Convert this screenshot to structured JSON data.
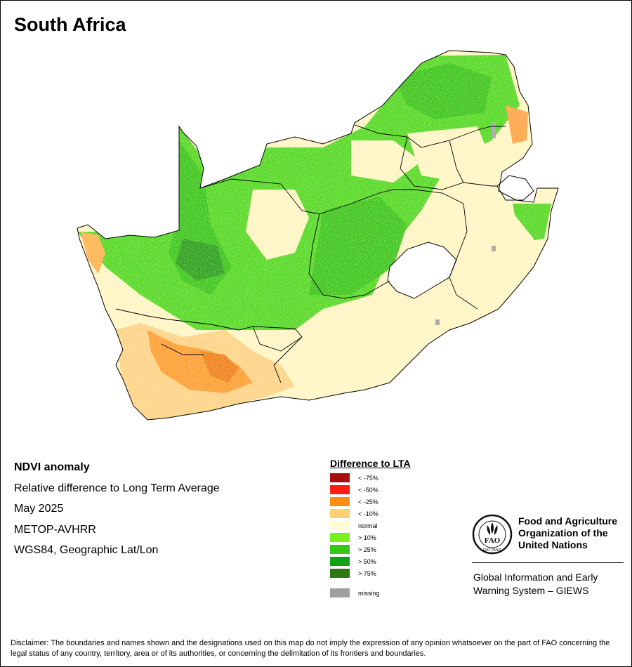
{
  "title": "South Africa",
  "meta": {
    "product": "NDVI anomaly",
    "description": "Relative difference to Long Term Average",
    "date": "May 2025",
    "sensor": "METOP-AVHRR",
    "projection": "WGS84, Geographic Lat/Lon"
  },
  "legend": {
    "title": "Difference to LTA",
    "items": [
      {
        "label": "< -75%",
        "color": "#A50F0F"
      },
      {
        "label": "< -50%",
        "color": "#FF1E14"
      },
      {
        "label": "< -25%",
        "color": "#FF8C14"
      },
      {
        "label": "< -10%",
        "color": "#FFCF73"
      },
      {
        "label": "normal",
        "color": "#FFFBD2"
      },
      {
        "label": "> 10%",
        "color": "#78F01E"
      },
      {
        "label": "> 25%",
        "color": "#32C814"
      },
      {
        "label": "> 50%",
        "color": "#14A014"
      },
      {
        "label": "> 75%",
        "color": "#2D7814"
      }
    ],
    "missing": {
      "label": "missing",
      "color": "#A0A0A0"
    }
  },
  "fao": {
    "name": "Food and Agriculture\nOrganization of the\nUnited Nations",
    "logo_letters": "FAO",
    "logo_motto": "FIAT PANIS",
    "giews": "Global Information and Early\nWarning System – GIEWS"
  },
  "disclaimer": "Disclaimer: The boundaries and names shown and the designations used on this map do not imply the expression of any opinion whatsoever on the part of FAO concerning the legal status of any country, territory, area or of its authorities, or concerning the delimitation of its frontiers and boundaries."
}
